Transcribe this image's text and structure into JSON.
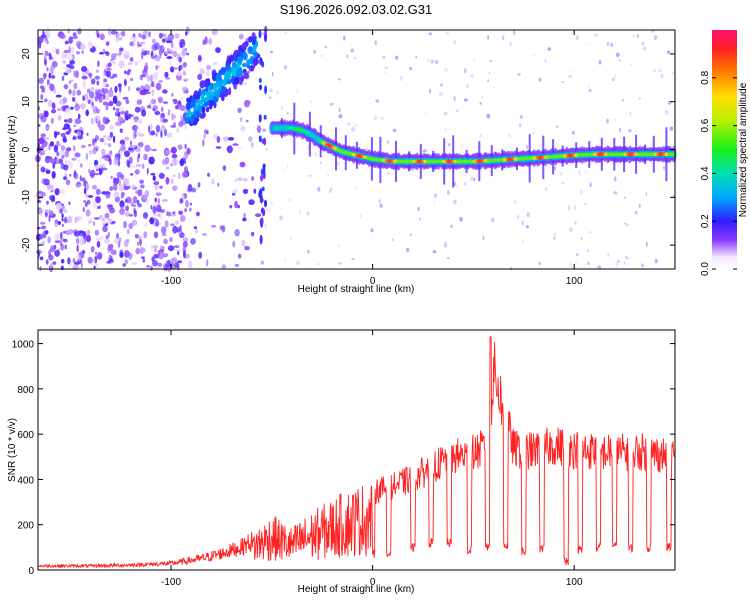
{
  "chart_data": [
    {
      "type": "heatmap",
      "title": "S196.2026.092.03.02.G31",
      "xlabel": "Height of straight line (km)",
      "ylabel": "Frequency (Hz)",
      "xlim": [
        -166,
        150
      ],
      "ylim": [
        -25,
        25
      ],
      "xticks": [
        -100,
        0,
        100
      ],
      "xtick_labels": [
        "-100",
        "0",
        "100"
      ],
      "yticks": [
        -20,
        -10,
        0,
        10,
        20
      ],
      "ytick_labels": [
        "-20",
        "-10",
        "0",
        "10",
        "20"
      ],
      "colorbar": {
        "label": "Normalized spectral amplitude",
        "range": [
          0,
          1
        ],
        "ticks": [
          0.0,
          0.2,
          0.4,
          0.6,
          0.8
        ],
        "tick_labels": [
          "0.0",
          "0.2",
          "0.4",
          "0.6",
          "0.8"
        ]
      },
      "ridge": {
        "x": [
          -50,
          -45,
          -40,
          -35,
          -30,
          -25,
          -20,
          -15,
          -10,
          -5,
          0,
          10,
          20,
          30,
          40,
          50,
          60,
          70,
          80,
          90,
          100,
          110,
          120,
          130,
          140,
          150
        ],
        "y": [
          4.5,
          4.5,
          4.5,
          4,
          3,
          1.5,
          0.5,
          -0.5,
          -1,
          -1.5,
          -2,
          -2.5,
          -2.5,
          -2.5,
          -2.5,
          -2.5,
          -2.3,
          -2,
          -1.8,
          -1.5,
          -1.2,
          -1,
          -1,
          -1,
          -1,
          -1
        ]
      },
      "early_ridge": {
        "x": [
          -92,
          -85,
          -80,
          -75,
          -70,
          -65,
          -60,
          -57
        ],
        "y": [
          7,
          10,
          12,
          14,
          16,
          18,
          20,
          22
        ]
      }
    },
    {
      "type": "line",
      "title": "",
      "xlabel": "Height of straight line (km)",
      "ylabel": "SNR (10 * v/v)",
      "xlim": [
        -166,
        150
      ],
      "ylim": [
        0,
        1060
      ],
      "xticks": [
        -100,
        0,
        100
      ],
      "xtick_labels": [
        "-100",
        "0",
        "100"
      ],
      "yticks": [
        0,
        200,
        400,
        600,
        800,
        1000
      ],
      "ytick_labels": [
        "0",
        "200",
        "400",
        "600",
        "800",
        "1000"
      ],
      "series": [
        {
          "name": "SNR",
          "color": "#ff2020",
          "envelope_x": [
            -166,
            -140,
            -120,
            -100,
            -85,
            -75,
            -65,
            -55,
            -50,
            -45,
            -40,
            -35,
            -30,
            -25,
            -20,
            -10,
            0,
            10,
            20,
            30,
            40,
            50,
            58,
            60,
            70,
            80,
            90,
            100,
            110,
            120,
            130,
            140,
            150
          ],
          "envelope_y": [
            25,
            25,
            30,
            40,
            70,
            100,
            140,
            210,
            250,
            220,
            190,
            230,
            260,
            290,
            320,
            370,
            400,
            430,
            470,
            530,
            580,
            600,
            640,
            1030,
            620,
            610,
            640,
            620,
            610,
            600,
            610,
            600,
            580
          ],
          "dip_x": [
            0,
            8,
            20,
            29,
            38,
            48,
            57,
            66,
            75,
            84,
            96,
            103,
            112,
            120,
            128,
            137,
            147
          ],
          "dip_y": [
            50,
            60,
            80,
            100,
            100,
            70,
            80,
            90,
            60,
            70,
            20,
            70,
            80,
            90,
            80,
            80,
            80
          ]
        }
      ]
    }
  ]
}
